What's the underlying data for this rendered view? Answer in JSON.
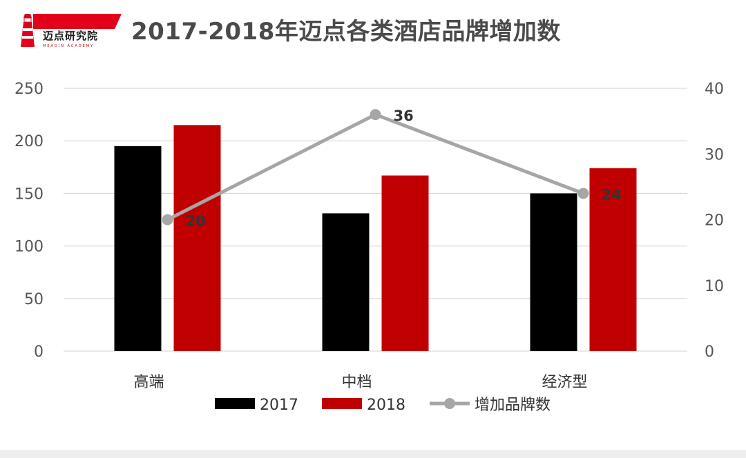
{
  "header": {
    "title": "2017-2018年迈点各类酒店品牌增加数",
    "logo_text": "迈点研究院",
    "logo_subtext": "MEADIN ACADEMY"
  },
  "colors": {
    "s2017": "#000000",
    "s2018": "#c00000",
    "line": "#a6a6a6",
    "grid": "#d9d9d9",
    "logo_red": "#e3001b"
  },
  "chart_data": {
    "type": "bar",
    "categories": [
      "高端",
      "中档",
      "经济型"
    ],
    "series": [
      {
        "name": "2017",
        "type": "bar",
        "axis": "left",
        "values": [
          195,
          131,
          150
        ]
      },
      {
        "name": "2018",
        "type": "bar",
        "axis": "left",
        "values": [
          215,
          167,
          174
        ]
      },
      {
        "name": "增加品牌数",
        "type": "line",
        "axis": "right",
        "values": [
          20,
          36,
          24
        ],
        "labels": [
          "20",
          "36",
          "24"
        ]
      }
    ],
    "y_left": {
      "ticks": [
        "0",
        "50",
        "100",
        "150",
        "200",
        "250"
      ],
      "lim": [
        0,
        250
      ]
    },
    "y_right": {
      "ticks": [
        "0",
        "10",
        "20",
        "30",
        "40"
      ],
      "lim": [
        0,
        40
      ]
    },
    "grid": true,
    "legend_position": "bottom"
  }
}
